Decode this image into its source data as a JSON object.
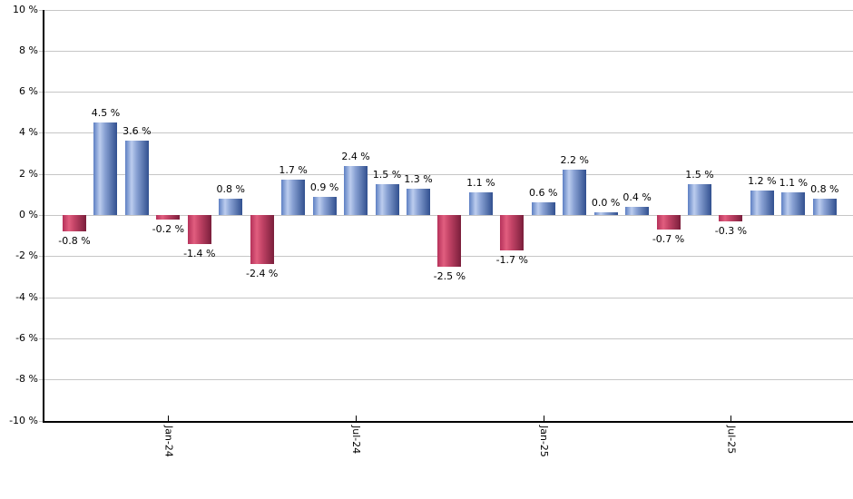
{
  "chart_data": {
    "type": "bar",
    "title": "",
    "xlabel": "",
    "ylabel": "",
    "unit": "%",
    "ylim": [
      -10,
      10
    ],
    "y_tick_step": 2,
    "grid": true,
    "legend": false,
    "y_ticks": [
      {
        "value": 10,
        "label": "10 %"
      },
      {
        "value": 8,
        "label": "8 %"
      },
      {
        "value": 6,
        "label": "6 %"
      },
      {
        "value": 4,
        "label": "4 %"
      },
      {
        "value": 2,
        "label": "2 %"
      },
      {
        "value": 0,
        "label": "0 %"
      },
      {
        "value": -2,
        "label": "-2 %"
      },
      {
        "value": -4,
        "label": "-4 %"
      },
      {
        "value": -6,
        "label": "-6 %"
      },
      {
        "value": -8,
        "label": "-8 %"
      },
      {
        "value": -10,
        "label": "-10 %"
      }
    ],
    "x_ticks": [
      {
        "label": "Jan-24",
        "bar_index": 3
      },
      {
        "label": "Jul-24",
        "bar_index": 9
      },
      {
        "label": "Jan-25",
        "bar_index": 15
      },
      {
        "label": "Jul-25",
        "bar_index": 21
      }
    ],
    "bars": [
      {
        "value": -0.8,
        "label": "-0.8 %"
      },
      {
        "value": 4.5,
        "label": "4.5 %"
      },
      {
        "value": 3.6,
        "label": "3.6 %"
      },
      {
        "value": -0.2,
        "label": "-0.2 %"
      },
      {
        "value": -1.4,
        "label": "-1.4 %"
      },
      {
        "value": 0.8,
        "label": "0.8 %"
      },
      {
        "value": -2.4,
        "label": "-2.4 %"
      },
      {
        "value": 1.7,
        "label": "1.7 %"
      },
      {
        "value": 0.9,
        "label": "0.9 %"
      },
      {
        "value": 2.4,
        "label": "2.4 %"
      },
      {
        "value": 1.5,
        "label": "1.5 %"
      },
      {
        "value": 1.3,
        "label": "1.3 %"
      },
      {
        "value": -2.5,
        "label": "-2.5 %"
      },
      {
        "value": 1.1,
        "label": "1.1 %"
      },
      {
        "value": -1.7,
        "label": "-1.7 %"
      },
      {
        "value": 0.6,
        "label": "0.6 %"
      },
      {
        "value": 2.2,
        "label": "2.2 %"
      },
      {
        "value": 0.0,
        "label": "0.0 %"
      },
      {
        "value": 0.4,
        "label": "0.4 %"
      },
      {
        "value": -0.7,
        "label": "-0.7 %"
      },
      {
        "value": 1.5,
        "label": "1.5 %"
      },
      {
        "value": -0.3,
        "label": "-0.3 %"
      },
      {
        "value": 1.2,
        "label": "1.2 %"
      },
      {
        "value": 1.1,
        "label": "1.1 %"
      },
      {
        "value": 0.8,
        "label": "0.8 %"
      }
    ],
    "colors": {
      "positive_base": "#5d7fc3",
      "positive_highlight": "#bccdee",
      "positive_mid": "#8aa2d4",
      "positive_dark": "#31508f",
      "negative_base": "#b5315a",
      "negative_highlight": "#e15e7f",
      "negative_mid": "#c54568",
      "negative_dark": "#7a1e3b",
      "gridline": "#c6c6c6",
      "axis": "#000000",
      "text": "#000000"
    }
  }
}
